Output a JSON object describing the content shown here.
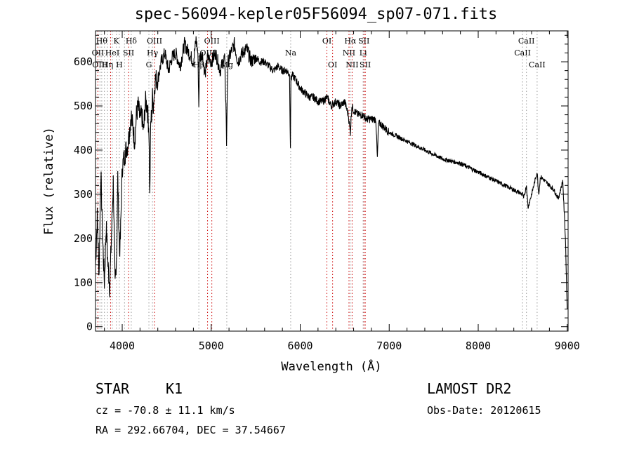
{
  "chart_data": {
    "type": "line",
    "title": "spec-56094-kepler05F56094_sp07-071.fits",
    "xlabel": "Wavelength (Å)",
    "ylabel": "Flux (relative)",
    "xlim": [
      3700,
      9010
    ],
    "ylim": [
      -10,
      670
    ],
    "xticks": [
      4000,
      5000,
      6000,
      7000,
      8000,
      9000
    ],
    "yticks": [
      0,
      100,
      200,
      300,
      400,
      500,
      600
    ],
    "grid": false,
    "series": [
      {
        "x": [
          3700,
          3720,
          3740,
          3760,
          3780,
          3800,
          3820,
          3840,
          3860,
          3880,
          3900,
          3920,
          3940,
          3950,
          3960,
          3970,
          3980,
          4000,
          4020,
          4040,
          4060,
          4080,
          4100,
          4120,
          4140,
          4160,
          4180,
          4200,
          4220,
          4240,
          4260,
          4280,
          4300,
          4310,
          4320,
          4330,
          4340,
          4350,
          4370,
          4400,
          4440,
          4480,
          4520,
          4560,
          4600,
          4650,
          4700,
          4750,
          4800,
          4830,
          4850,
          4861,
          4870,
          4900,
          4930,
          4960,
          5000,
          5050,
          5100,
          5150,
          5168,
          5172,
          5176,
          5183,
          5190,
          5220,
          5260,
          5300,
          5350,
          5400,
          5450,
          5500,
          5550,
          5600,
          5650,
          5700,
          5750,
          5800,
          5850,
          5880,
          5890,
          5896,
          5910,
          5950,
          6000,
          6050,
          6100,
          6150,
          6200,
          6250,
          6300,
          6350,
          6400,
          6450,
          6500,
          6540,
          6563,
          6580,
          6600,
          6650,
          6700,
          6750,
          6800,
          6850,
          6867,
          6880,
          6900,
          7000,
          7100,
          7200,
          7300,
          7400,
          7500,
          7600,
          7700,
          7800,
          7900,
          8000,
          8100,
          8200,
          8300,
          8400,
          8498,
          8510,
          8542,
          8560,
          8600,
          8662,
          8680,
          8700,
          8800,
          8850,
          8900,
          8950,
          8980,
          9000
        ],
        "y": [
          140,
          250,
          120,
          350,
          200,
          100,
          230,
          140,
          90,
          210,
          330,
          90,
          180,
          340,
          250,
          170,
          200,
          360,
          380,
          400,
          410,
          440,
          480,
          450,
          420,
          480,
          500,
          470,
          480,
          440,
          510,
          500,
          450,
          290,
          460,
          480,
          520,
          500,
          560,
          560,
          600,
          620,
          580,
          610,
          620,
          590,
          640,
          620,
          600,
          650,
          620,
          500,
          610,
          620,
          570,
          610,
          600,
          620,
          580,
          610,
          480,
          400,
          470,
          560,
          600,
          620,
          640,
          600,
          620,
          630,
          600,
          610,
          600,
          600,
          590,
          580,
          590,
          580,
          580,
          570,
          410,
          560,
          570,
          560,
          540,
          530,
          520,
          520,
          510,
          510,
          520,
          500,
          510,
          500,
          510,
          480,
          440,
          500,
          490,
          480,
          480,
          470,
          470,
          470,
          380,
          460,
          460,
          440,
          430,
          420,
          410,
          400,
          390,
          380,
          375,
          370,
          360,
          350,
          340,
          330,
          320,
          310,
          300,
          290,
          320,
          270,
          300,
          350,
          300,
          340,
          320,
          310,
          290,
          330,
          200,
          40
        ]
      }
    ],
    "lines": [
      {
        "wl": 3727,
        "color": "#cc0000",
        "label": "OII",
        "row": 2
      },
      {
        "wl": 3750,
        "color": "#999999",
        "label": "OIII",
        "row": 3
      },
      {
        "wl": 3770,
        "color": "#999999",
        "label": "Hθ",
        "row": 1
      },
      {
        "wl": 3800,
        "color": "#999999",
        "label": "",
        "row": 0
      },
      {
        "wl": 3835,
        "color": "#999999",
        "label": "Hη",
        "row": 3
      },
      {
        "wl": 3869,
        "color": "#cc0000",
        "label": "",
        "row": 0
      },
      {
        "wl": 3889,
        "color": "#999999",
        "label": "HeI",
        "row": 2
      },
      {
        "wl": 3934,
        "color": "#999999",
        "label": "K",
        "row": 1
      },
      {
        "wl": 3968,
        "color": "#999999",
        "label": "H",
        "row": 3
      },
      {
        "wl": 4026,
        "color": "#999999",
        "label": "",
        "row": 0
      },
      {
        "wl": 4072,
        "color": "#cc0000",
        "label": "SII",
        "row": 2
      },
      {
        "wl": 4102,
        "color": "#999999",
        "label": "Hδ",
        "row": 1
      },
      {
        "wl": 4300,
        "color": "#999999",
        "label": "G",
        "row": 3
      },
      {
        "wl": 4340,
        "color": "#999999",
        "label": "Hγ",
        "row": 2
      },
      {
        "wl": 4363,
        "color": "#cc0000",
        "label": "OIII",
        "row": 1
      },
      {
        "wl": 4861,
        "color": "#999999",
        "label": "Hβ",
        "row": 3
      },
      {
        "wl": 4959,
        "color": "#cc0000",
        "label": "OIII",
        "row": 2
      },
      {
        "wl": 5007,
        "color": "#cc0000",
        "label": "OIII",
        "row": 1
      },
      {
        "wl": 5175,
        "color": "#999999",
        "label": "Mg",
        "row": 3
      },
      {
        "wl": 5893,
        "color": "#999999",
        "label": "Na",
        "row": 2
      },
      {
        "wl": 6300,
        "color": "#cc0000",
        "label": "OI",
        "row": 1
      },
      {
        "wl": 6364,
        "color": "#cc0000",
        "label": "OI",
        "row": 3
      },
      {
        "wl": 6548,
        "color": "#cc0000",
        "label": "NII",
        "row": 2
      },
      {
        "wl": 6563,
        "color": "#999999",
        "label": "Hα",
        "row": 1
      },
      {
        "wl": 6583,
        "color": "#cc0000",
        "label": "NII",
        "row": 3
      },
      {
        "wl": 6707,
        "color": "#999999",
        "label": "Li",
        "row": 2
      },
      {
        "wl": 6716,
        "color": "#cc0000",
        "label": "SII",
        "row": 1
      },
      {
        "wl": 6731,
        "color": "#cc0000",
        "label": "SII",
        "row": 3
      },
      {
        "wl": 8498,
        "color": "#999999",
        "label": "CaII",
        "row": 2
      },
      {
        "wl": 8542,
        "color": "#999999",
        "label": "CaII",
        "row": 1
      },
      {
        "wl": 8662,
        "color": "#999999",
        "label": "CaII",
        "row": 3
      }
    ]
  },
  "info": {
    "class_label": "STAR",
    "subclass": "K1",
    "redshift": "cz = -70.8 ± 11.1 km/s",
    "coords": "RA = 292.66704, DEC =  37.54667",
    "survey": "LAMOST DR2",
    "obs_date": "Obs-Date: 20120615"
  }
}
